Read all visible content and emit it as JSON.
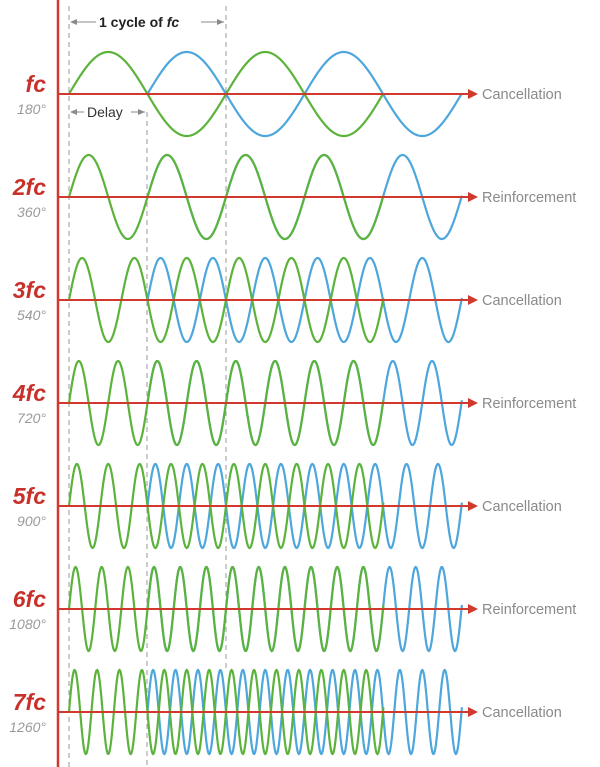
{
  "header": {
    "cycle_prefix": "1 cycle of ",
    "cycle_var": "fc",
    "delay_label": "Delay"
  },
  "colors": {
    "direct_wave": "#5cb33c",
    "delayed_wave": "#4da6dc",
    "axis": "#d0392b",
    "label": "#c8312a",
    "degree": "#9a9a9a",
    "result": "#8a8a8a",
    "guide": "#9a9a9a"
  },
  "rows": [
    {
      "label": "fc",
      "degrees": "180°",
      "harmonic": 1,
      "result": "Cancellation"
    },
    {
      "label": "2fc",
      "degrees": "360°",
      "harmonic": 2,
      "result": "Reinforcement"
    },
    {
      "label": "3fc",
      "degrees": "540°",
      "harmonic": 3,
      "result": "Cancellation"
    },
    {
      "label": "4fc",
      "degrees": "720°",
      "harmonic": 4,
      "result": "Reinforcement"
    },
    {
      "label": "5fc",
      "degrees": "900°",
      "harmonic": 5,
      "result": "Cancellation"
    },
    {
      "label": "6fc",
      "degrees": "1080°",
      "harmonic": 6,
      "result": "Reinforcement"
    },
    {
      "label": "7fc",
      "degrees": "1260°",
      "harmonic": 7,
      "result": "Cancellation"
    }
  ]
}
